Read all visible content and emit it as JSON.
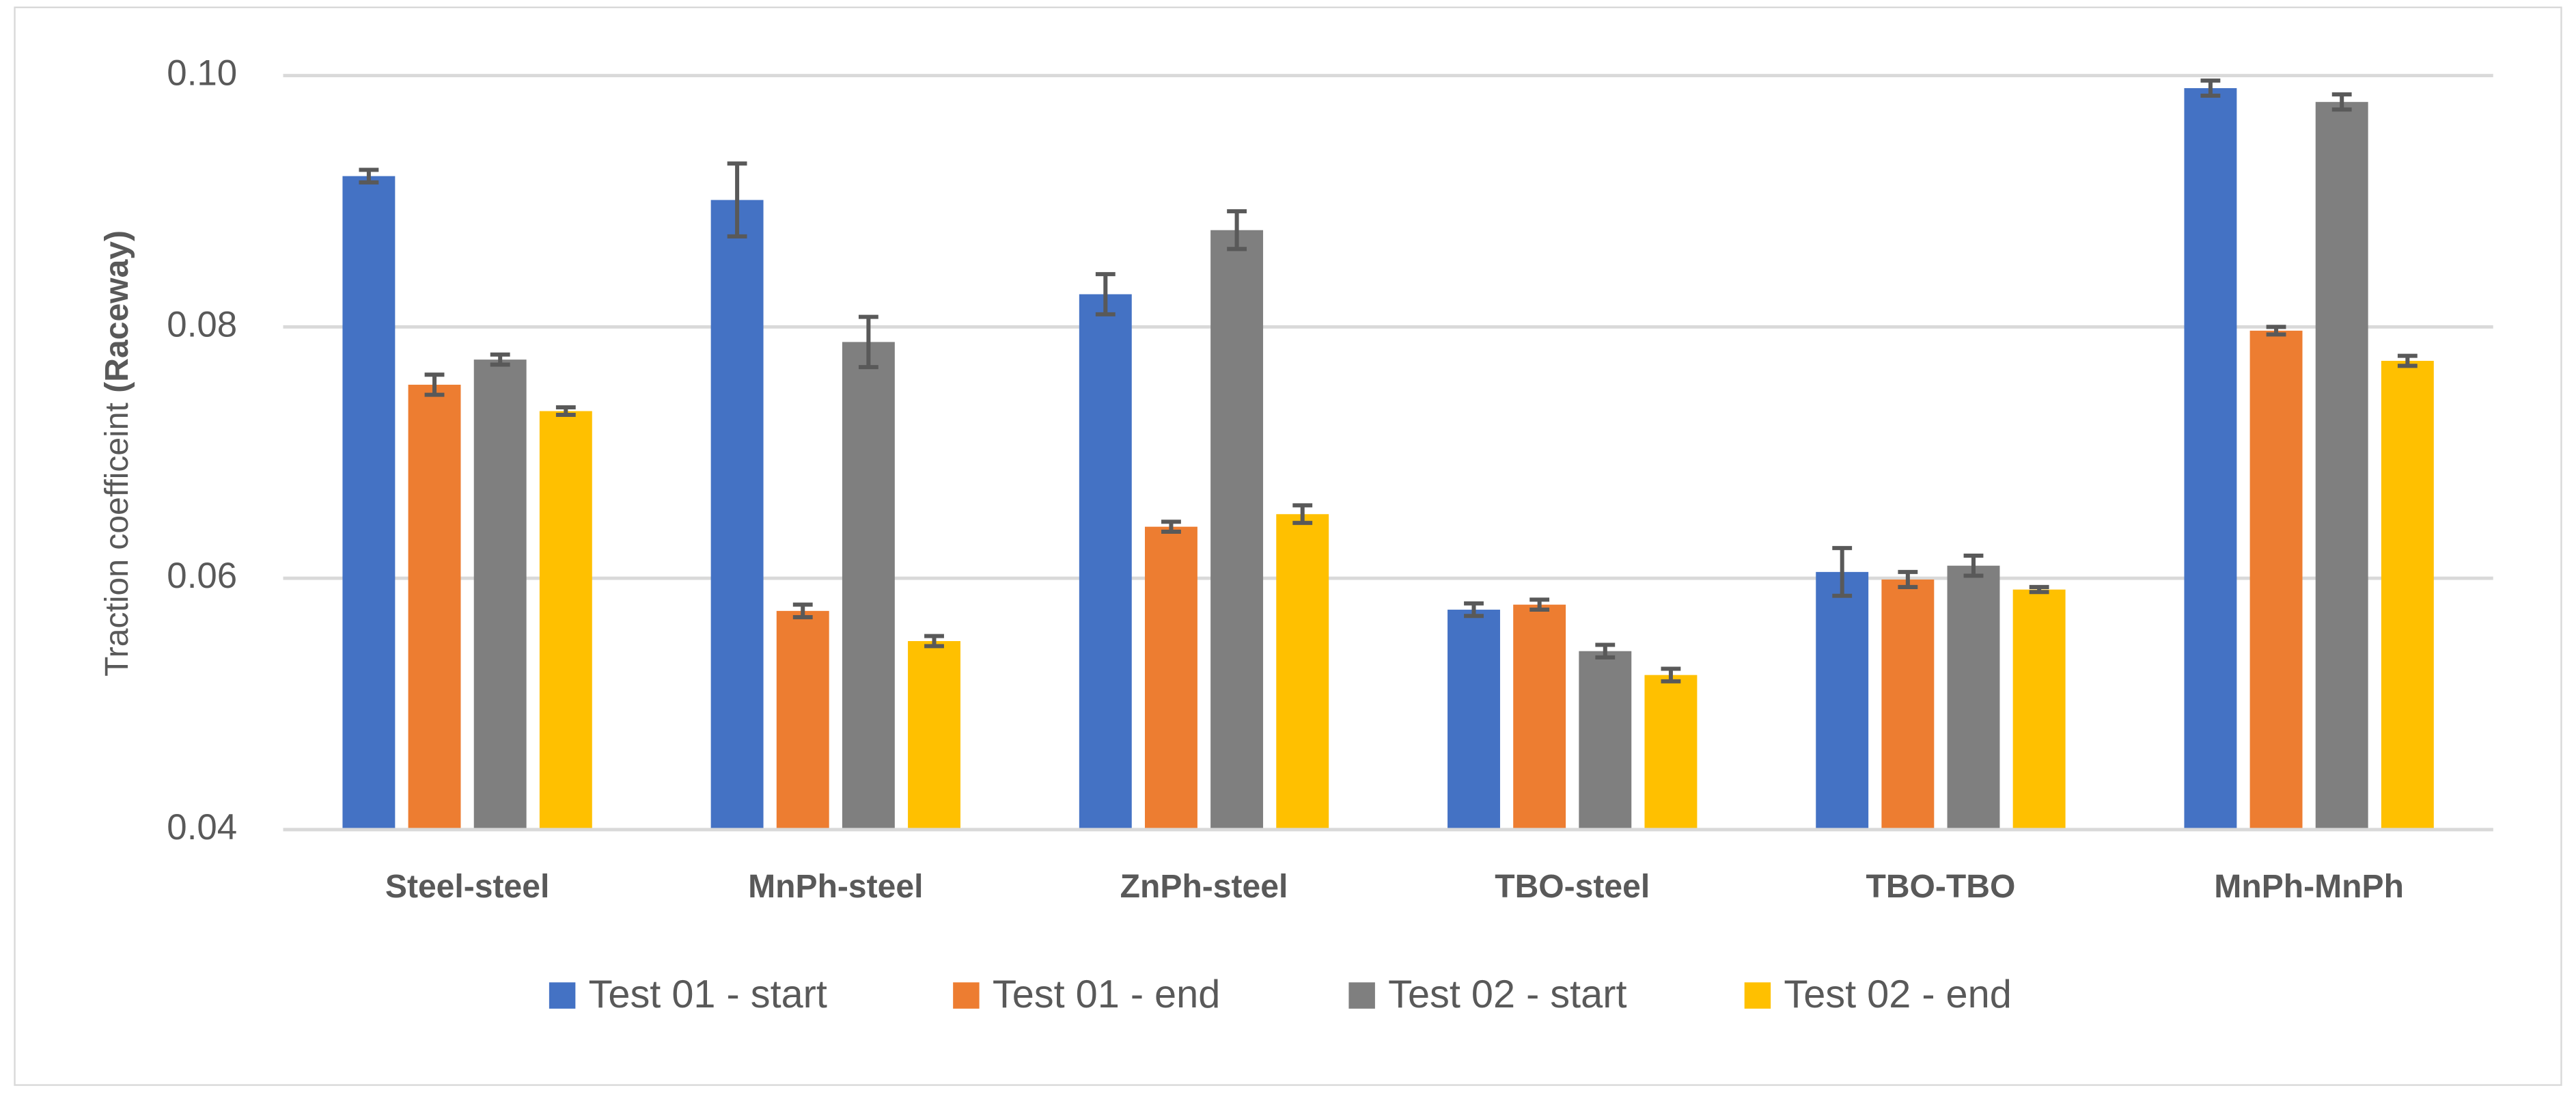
{
  "chart_data": {
    "type": "bar",
    "ylabel": "Traction coefficeint",
    "ylabel_bold": "(Raceway)",
    "categories": [
      "Steel-steel",
      "MnPh-steel",
      "ZnPh-steel",
      "TBO-steel",
      "TBO-TBO",
      "MnPh-MnPh"
    ],
    "series": [
      {
        "name": "Test 01 - start",
        "color": "#4472c4",
        "values": [
          0.092,
          0.0901,
          0.0826,
          0.0575,
          0.0605,
          0.099
        ],
        "errors": [
          0.0005,
          0.0029,
          0.0016,
          0.0005,
          0.0019,
          0.0006
        ]
      },
      {
        "name": "Test 01 - end",
        "color": "#ed7d31",
        "values": [
          0.0754,
          0.0574,
          0.0641,
          0.0579,
          0.0599,
          0.0797
        ],
        "errors": [
          0.0008,
          0.0005,
          0.0004,
          0.0004,
          0.0006,
          0.0003
        ]
      },
      {
        "name": "Test 02 - start",
        "color": "#7f7f7f",
        "values": [
          0.0774,
          0.0788,
          0.0877,
          0.0542,
          0.061,
          0.0979
        ],
        "errors": [
          0.0004,
          0.002,
          0.0015,
          0.0005,
          0.0008,
          0.0006
        ]
      },
      {
        "name": "Test 02 - end",
        "color": "#ffc000",
        "values": [
          0.0733,
          0.055,
          0.0651,
          0.0523,
          0.0591,
          0.0773
        ],
        "errors": [
          0.0003,
          0.0004,
          0.0007,
          0.0005,
          0.0002,
          0.0004
        ]
      }
    ],
    "ylim": [
      0.04,
      0.1
    ],
    "yticks": [
      0.04,
      0.06,
      0.08,
      {
        "value": 0.1,
        "label": "0.10"
      }
    ],
    "grid": true,
    "error_bar_color": "#595959",
    "legend": "bottom"
  }
}
